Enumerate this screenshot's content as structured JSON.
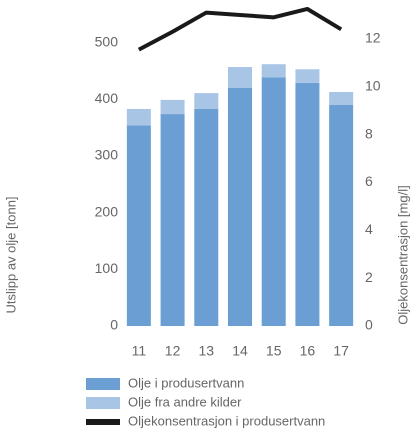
{
  "chart_data": {
    "type": "bar",
    "categories": [
      "11",
      "12",
      "13",
      "14",
      "15",
      "16",
      "17"
    ],
    "series": [
      {
        "name": "Olje i produsertvann",
        "color": "#6b9ed2",
        "values": [
          354,
          374,
          383,
          420,
          439,
          429,
          390
        ]
      },
      {
        "name": "Olje fra andre kilder",
        "color": "#a9c5e6",
        "values": [
          29,
          25,
          28,
          37,
          23,
          24,
          23
        ]
      },
      {
        "name": "Oljekonsentrasjon i produsertvann",
        "color": "#1a1a1a",
        "type": "line",
        "axis": "y2",
        "values": [
          11.55,
          12.3,
          13.1,
          13.0,
          12.9,
          13.25,
          12.4
        ]
      }
    ],
    "y_label": "Utslipp av olje [tonn]",
    "y2_label": "Oljekonsentrasjon [mg/l]",
    "ylim": [
      0,
      570
    ],
    "yticks": [
      0,
      100,
      200,
      300,
      400,
      500
    ],
    "y2lim": [
      0,
      13.5
    ],
    "y2ticks": [
      0,
      2,
      4,
      6,
      8,
      10,
      12
    ],
    "stacked": true,
    "legend": "bottom"
  }
}
